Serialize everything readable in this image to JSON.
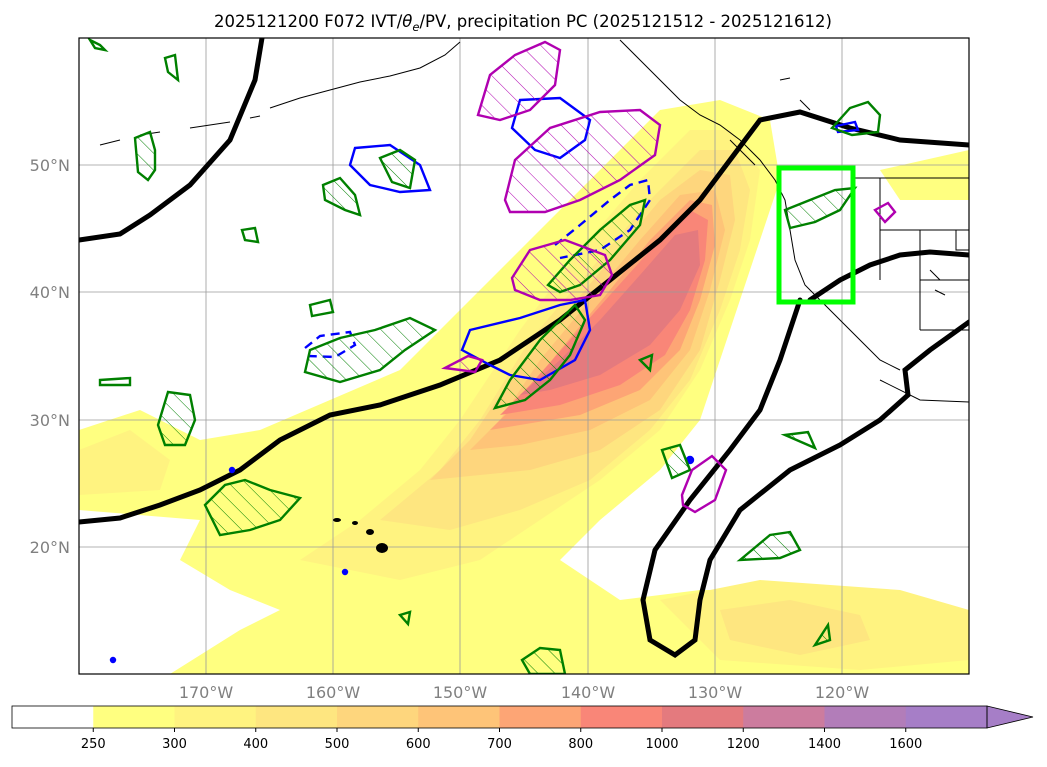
{
  "title": {
    "prefix": "2025121200 F072 IVT/",
    "theta": "θ",
    "theta_sub": "e",
    "suffix": "/PV, precipitation PC (2025121512 - 2025121612)"
  },
  "map": {
    "projection": "PlateCarree",
    "lon_range": [
      -180,
      -110
    ],
    "lat_range": [
      10,
      60
    ],
    "lon_ticks": [
      {
        "value": -170,
        "label": "170°W"
      },
      {
        "value": -160,
        "label": "160°W"
      },
      {
        "value": -150,
        "label": "150°W"
      },
      {
        "value": -140,
        "label": "140°W"
      },
      {
        "value": -130,
        "label": "130°W"
      },
      {
        "value": -120,
        "label": "120°W"
      }
    ],
    "lat_ticks": [
      {
        "value": 50,
        "label": "50°N"
      },
      {
        "value": 40,
        "label": "40°N"
      },
      {
        "value": 30,
        "label": "30°N"
      },
      {
        "value": 20,
        "label": "20°N"
      }
    ],
    "gridlines": true,
    "highlight_box": {
      "lon": [
        -125,
        -119
      ],
      "lat": [
        39,
        49.8
      ],
      "color": "#00ff00"
    }
  },
  "colorbar": {
    "ticks": [
      "250",
      "300",
      "400",
      "500",
      "600",
      "700",
      "800",
      "1000",
      "1200",
      "1400",
      "1600"
    ],
    "colors": [
      "#ffffff",
      "#ffff80",
      "#fff380",
      "#fee680",
      "#fed67d",
      "#fec478",
      "#fda575",
      "#f98678",
      "#e47a7e",
      "#cc7c9e",
      "#b27db9",
      "#a67ec7"
    ],
    "extend": "max"
  },
  "chart_data": {
    "type": "heatmap",
    "variable": "IVT",
    "levels": [
      250,
      300,
      400,
      500,
      600,
      700,
      800,
      1000,
      1200,
      1400,
      1600
    ],
    "extend": "max",
    "overlays": [
      {
        "name": "theta_e",
        "color": "#000000",
        "style": "thick solid contour"
      },
      {
        "name": "PV",
        "color": "#0000ff",
        "style": "solid/dashed contours"
      },
      {
        "name": "precipitation PC",
        "color": "#008000 / #b000b0",
        "style": "hatched contours"
      }
    ]
  }
}
